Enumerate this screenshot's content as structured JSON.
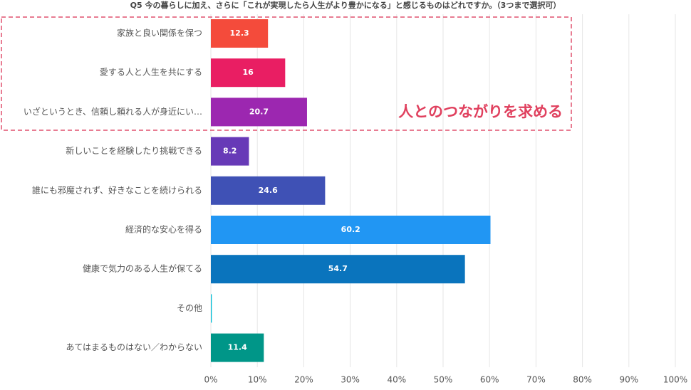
{
  "chart_data": {
    "type": "bar",
    "orientation": "horizontal",
    "title": "Q5 今の暮らしに加え、さらに「これが実現したら人生がより豊かになる」と感じるものはどれですか。（3つまで選択可）",
    "categories": [
      "家族と良い関係を保つ",
      "愛する人と人生を共にする",
      "いざというとき、信頼し頼れる人が身近にい…",
      "新しいことを経験したり挑戦できる",
      "誰にも邪魔されず、好きなことを続けられる",
      "経済的な安心を得る",
      "健康で気力のある人生が保てる",
      "その他",
      "あてはまるものはない／わからない"
    ],
    "values": [
      12.3,
      16,
      20.7,
      8.2,
      24.6,
      60.2,
      54.7,
      0.2,
      11.4
    ],
    "colors": [
      "#f44b3b",
      "#e91e63",
      "#9c27b0",
      "#673ab7",
      "#3f51b5",
      "#2196f3",
      "#0a74bd",
      "#00bcd4",
      "#009688"
    ],
    "xlim": [
      0,
      100
    ],
    "xticks": [
      {
        "value": 0,
        "label": "0%"
      },
      {
        "value": 10,
        "label": "10%"
      },
      {
        "value": 20,
        "label": "20%"
      },
      {
        "value": 30,
        "label": "30%"
      },
      {
        "value": 40,
        "label": "40%"
      },
      {
        "value": 50,
        "label": "50%"
      },
      {
        "value": 60,
        "label": "60%"
      },
      {
        "value": 70,
        "label": "70%"
      },
      {
        "value": 80,
        "label": "80%"
      },
      {
        "value": 90,
        "label": "90%"
      },
      {
        "value": 100,
        "label": "100%"
      }
    ],
    "grid": true,
    "annotation": "人とのつながりを求める"
  }
}
